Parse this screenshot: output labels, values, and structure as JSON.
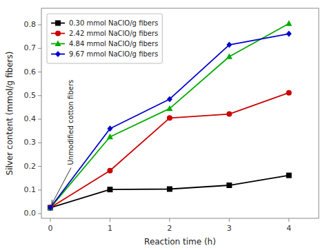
{
  "chart_data": {
    "type": "line",
    "x": [
      0,
      1,
      2,
      3,
      4
    ],
    "series": [
      {
        "name": "0.30 mmol NaClO/g fibers",
        "color": "#000000",
        "marker": "square",
        "values": [
          0.025,
          0.102,
          0.104,
          0.12,
          0.162
        ]
      },
      {
        "name": "2.42 mmol NaClO/g fibers",
        "color": "#cc0000",
        "marker": "circle",
        "values": [
          0.025,
          0.182,
          0.405,
          0.422,
          0.512
        ]
      },
      {
        "name": "4.84 mmol NaClO/g fibers",
        "color": "#00aa00",
        "marker": "triangle",
        "values": [
          0.025,
          0.325,
          0.445,
          0.665,
          0.805
        ]
      },
      {
        "name": "9.67 mmol NaClO/g fibers",
        "color": "#0000cc",
        "marker": "diamond",
        "values": [
          0.025,
          0.36,
          0.485,
          0.715,
          0.762
        ]
      }
    ],
    "x_label": "Reaction time (h)",
    "y_label": "Silver content (mmol/g fibers)",
    "xlim": [
      -0.15,
      4.5
    ],
    "ylim": [
      -0.02,
      0.87
    ],
    "xticks": [
      0,
      1,
      2,
      3,
      4
    ],
    "yticks": [
      {
        "value": 0.0,
        "label": "0.0"
      },
      0.1,
      0.2,
      0.3,
      0.4,
      0.5,
      0.6,
      0.7,
      0.8
    ],
    "annotations": [
      {
        "text": "Unmodified cotton fibers",
        "x": 0.0,
        "y": 0.025
      }
    ],
    "grid": false,
    "legend": "upper left"
  }
}
